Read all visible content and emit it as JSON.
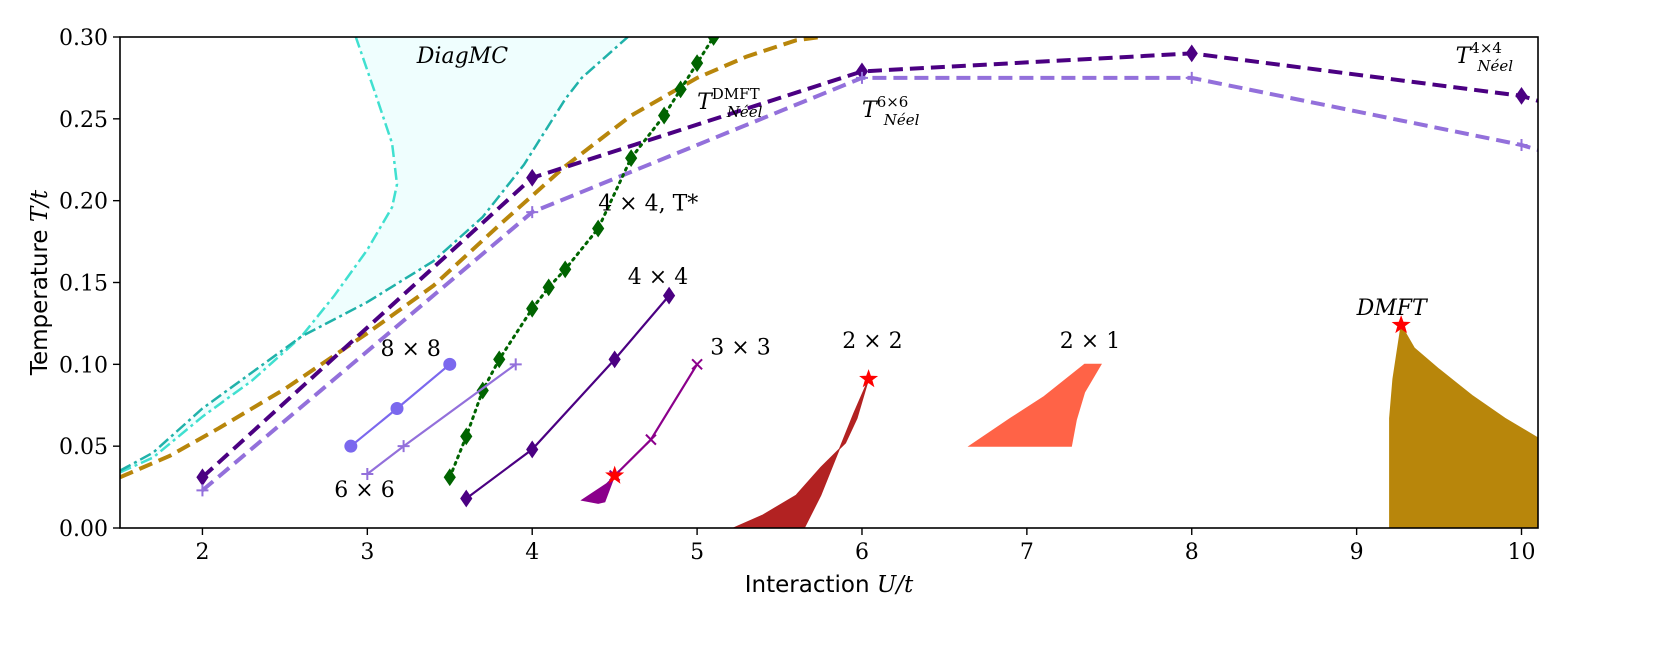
{
  "chart_data": {
    "type": "line",
    "title": "",
    "xlabel": "Interaction U/t",
    "ylabel": "Temperature T/t",
    "xlabel_parts": {
      "text": "Interaction ",
      "math": "U/t"
    },
    "ylabel_parts": {
      "text": "Temperature ",
      "math": "T/t"
    },
    "xlim": [
      1.5,
      10.1
    ],
    "ylim": [
      0.0,
      0.3
    ],
    "xticks": [
      2,
      3,
      4,
      5,
      6,
      7,
      8,
      9,
      10
    ],
    "xtick_labels": [
      "2",
      "3",
      "4",
      "5",
      "6",
      "7",
      "8",
      "9",
      "10"
    ],
    "yticks": [
      0.0,
      0.05,
      0.1,
      0.15,
      0.2,
      0.25,
      0.3
    ],
    "ytick_labels": [
      "0.00",
      "0.05",
      "0.10",
      "0.15",
      "0.20",
      "0.25",
      "0.30"
    ],
    "grid": false,
    "diagmc_region": {
      "label": "DiagMC",
      "fill_color": "#effefe",
      "left_boundary": [
        [
          1.5,
          0.034
        ],
        [
          1.7,
          0.043
        ],
        [
          2.0,
          0.068
        ],
        [
          2.3,
          0.09
        ],
        [
          2.6,
          0.117
        ],
        [
          2.8,
          0.142
        ],
        [
          3.0,
          0.17
        ],
        [
          3.15,
          0.196
        ],
        [
          3.18,
          0.21
        ],
        [
          3.15,
          0.235
        ],
        [
          3.05,
          0.265
        ],
        [
          2.93,
          0.3
        ]
      ],
      "right_boundary": [
        [
          1.5,
          0.035
        ],
        [
          1.7,
          0.046
        ],
        [
          2.0,
          0.073
        ],
        [
          2.3,
          0.095
        ],
        [
          2.6,
          0.117
        ],
        [
          3.0,
          0.138
        ],
        [
          3.4,
          0.163
        ],
        [
          3.7,
          0.19
        ],
        [
          3.95,
          0.222
        ],
        [
          4.2,
          0.262
        ],
        [
          4.3,
          0.275
        ],
        [
          4.58,
          0.3
        ]
      ],
      "left_color": "#40e0d0",
      "right_color": "#20b2aa"
    },
    "series": [
      {
        "name": "T_Neel_DMFT",
        "color": "#b8860b",
        "style": "dashed",
        "marker": "none",
        "x": [
          1.5,
          1.8,
          2.1,
          2.5,
          3.0,
          3.4,
          3.8,
          4.2,
          4.6,
          5.0,
          5.3,
          5.6,
          5.75
        ],
        "y": [
          0.031,
          0.044,
          0.061,
          0.085,
          0.119,
          0.148,
          0.185,
          0.221,
          0.252,
          0.275,
          0.288,
          0.298,
          0.3
        ]
      },
      {
        "name": "T_Neel_4x4",
        "color": "#4b0082",
        "style": "dashed",
        "marker": "diamond",
        "x": [
          2.0,
          4.0,
          6.0,
          8.0,
          10.0,
          10.1
        ],
        "y": [
          0.031,
          0.214,
          0.279,
          0.29,
          0.264,
          0.261
        ],
        "marker_count": 5
      },
      {
        "name": "T_Neel_6x6",
        "color": "#9370db",
        "style": "dashed",
        "marker": "plus",
        "x": [
          2.0,
          4.0,
          6.0,
          8.0,
          10.0,
          10.1
        ],
        "y": [
          0.023,
          0.193,
          0.275,
          0.275,
          0.234,
          0.231
        ],
        "marker_count": 5
      },
      {
        "name": "4x4_Tstar",
        "color": "#006400",
        "style": "dotted",
        "marker": "diamond",
        "x": [
          3.5,
          3.6,
          3.7,
          3.8,
          4.0,
          4.1,
          4.2,
          4.4,
          4.6,
          4.8,
          4.9,
          5.0,
          5.1
        ],
        "y": [
          0.031,
          0.056,
          0.084,
          0.103,
          0.134,
          0.147,
          0.158,
          0.183,
          0.226,
          0.252,
          0.268,
          0.284,
          0.3
        ]
      },
      {
        "name": "4x4",
        "color": "#4b0082",
        "style": "solid",
        "marker": "diamond",
        "x": [
          3.6,
          4.0,
          4.5,
          4.83
        ],
        "y": [
          0.018,
          0.048,
          0.103,
          0.142
        ]
      },
      {
        "name": "3x3",
        "color": "#8b008b",
        "style": "solid",
        "marker": "x",
        "x": [
          4.5,
          4.72,
          5.0
        ],
        "y": [
          0.032,
          0.054,
          0.1
        ]
      },
      {
        "name": "8x8",
        "color": "#7b68ee",
        "style": "solid",
        "marker": "circle",
        "x": [
          2.9,
          3.18,
          3.5
        ],
        "y": [
          0.05,
          0.073,
          0.1
        ]
      },
      {
        "name": "6x6",
        "color": "#9370db",
        "style": "solid",
        "marker": "plus",
        "x": [
          3.0,
          3.22,
          3.9
        ],
        "y": [
          0.033,
          0.05,
          0.1
        ]
      }
    ],
    "regions": [
      {
        "name": "3x3_region",
        "color": "#8b008b",
        "polygon": [
          [
            4.3,
            0.017
          ],
          [
            4.45,
            0.027
          ],
          [
            4.5,
            0.032
          ],
          [
            4.44,
            0.016
          ],
          [
            4.4,
            0.015
          ]
        ]
      },
      {
        "name": "2x2_region",
        "color": "#b22222",
        "polygon": [
          [
            5.22,
            0.0
          ],
          [
            5.4,
            0.008
          ],
          [
            5.6,
            0.02
          ],
          [
            5.75,
            0.037
          ],
          [
            5.9,
            0.052
          ],
          [
            5.97,
            0.067
          ],
          [
            6.04,
            0.091
          ],
          [
            5.95,
            0.07
          ],
          [
            5.85,
            0.045
          ],
          [
            5.75,
            0.02
          ],
          [
            5.65,
            0.0
          ]
        ]
      },
      {
        "name": "2x1_region",
        "color": "#ff6347",
        "polygon": [
          [
            6.65,
            0.05
          ],
          [
            6.9,
            0.067
          ],
          [
            7.1,
            0.08
          ],
          [
            7.35,
            0.1
          ],
          [
            7.45,
            0.1
          ],
          [
            7.35,
            0.083
          ],
          [
            7.3,
            0.066
          ],
          [
            7.27,
            0.05
          ]
        ]
      },
      {
        "name": "DMFT_region",
        "color": "#b8860b",
        "polygon": [
          [
            9.2,
            0.0
          ],
          [
            9.2,
            0.067
          ],
          [
            9.22,
            0.091
          ],
          [
            9.27,
            0.124
          ],
          [
            9.35,
            0.11
          ],
          [
            9.5,
            0.097
          ],
          [
            9.7,
            0.081
          ],
          [
            9.9,
            0.067
          ],
          [
            10.1,
            0.055
          ],
          [
            10.1,
            0.0
          ]
        ]
      }
    ],
    "stars": [
      {
        "name": "star-3x3",
        "x": 4.5,
        "y": 0.032,
        "color": "#ff0000"
      },
      {
        "name": "star-2x2",
        "x": 6.04,
        "y": 0.091,
        "color": "#ff0000"
      },
      {
        "name": "star-DMFT",
        "x": 9.27,
        "y": 0.124,
        "color": "#ff0000"
      }
    ],
    "annotations": [
      {
        "name": "label-diagmc",
        "text": "DiagMC",
        "x": 3.3,
        "y": 0.284,
        "style": "italic"
      },
      {
        "name": "label-tneel-dmft",
        "text": "T",
        "sup": "DMFT",
        "sub": "Néel",
        "x": 5.0,
        "y": 0.256,
        "style": "italic"
      },
      {
        "name": "label-tneel-6x6",
        "text": "T",
        "sup": "6×6",
        "sub": "Néel",
        "x": 6.0,
        "y": 0.251,
        "style": "italic"
      },
      {
        "name": "label-tneel-4x4",
        "text": "T",
        "sup": "4×4",
        "sub": "Néel",
        "x": 9.6,
        "y": 0.284,
        "style": "italic"
      },
      {
        "name": "label-4x4-tstar",
        "text": "4 × 4, T*",
        "x": 4.4,
        "y": 0.194,
        "style": "normal"
      },
      {
        "name": "label-4x4",
        "text": "4 × 4",
        "x": 4.58,
        "y": 0.149,
        "style": "normal"
      },
      {
        "name": "label-3x3",
        "text": "3 × 3",
        "x": 5.08,
        "y": 0.106,
        "style": "normal"
      },
      {
        "name": "label-8x8",
        "text": "8 × 8",
        "x": 3.08,
        "y": 0.105,
        "style": "normal"
      },
      {
        "name": "label-6x6",
        "text": "6 × 6",
        "x": 2.8,
        "y": 0.019,
        "style": "normal"
      },
      {
        "name": "label-2x2",
        "text": "2 × 2",
        "x": 5.88,
        "y": 0.11,
        "style": "normal"
      },
      {
        "name": "label-2x1",
        "text": "2 × 1",
        "x": 7.2,
        "y": 0.11,
        "style": "normal"
      },
      {
        "name": "label-dmft",
        "text": "DMFT",
        "x": 9.0,
        "y": 0.13,
        "style": "italic"
      }
    ]
  }
}
